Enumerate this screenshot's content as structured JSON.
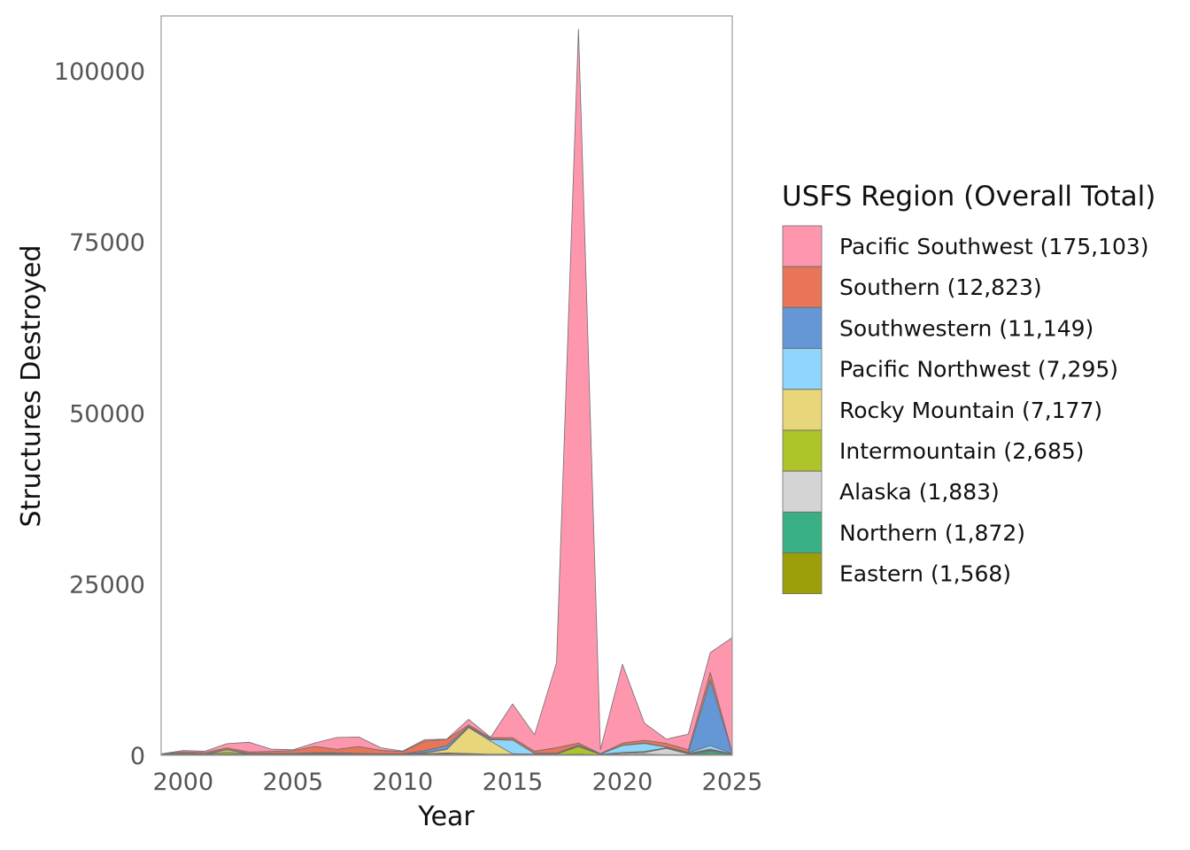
{
  "chart_data": {
    "type": "area",
    "stacked": true,
    "xlabel": "Year",
    "ylabel": "Structures Destroyed",
    "xlim": [
      1999,
      2025
    ],
    "ylim": [
      0,
      108000
    ],
    "x_ticks": [
      2000,
      2005,
      2010,
      2015,
      2020,
      2025
    ],
    "y_ticks": [
      0,
      25000,
      50000,
      75000,
      100000
    ],
    "legend_title": "USFS Region (Overall Total)",
    "legend_position": "right",
    "grid": false,
    "x": [
      1999,
      2000,
      2001,
      2002,
      2003,
      2004,
      2005,
      2006,
      2007,
      2008,
      2009,
      2010,
      2011,
      2012,
      2013,
      2014,
      2015,
      2016,
      2017,
      2018,
      2019,
      2020,
      2021,
      2022,
      2023,
      2024,
      2025
    ],
    "series": [
      {
        "name": "Eastern",
        "legend_label": "Eastern (1,568)",
        "color": "#9c9e0a",
        "values": [
          20,
          50,
          30,
          80,
          40,
          50,
          60,
          80,
          70,
          50,
          40,
          40,
          60,
          80,
          60,
          40,
          50,
          40,
          40,
          60,
          30,
          40,
          60,
          50,
          40,
          200,
          50
        ]
      },
      {
        "name": "Northern",
        "legend_label": "Northern (1,872)",
        "color": "#38b084",
        "values": [
          30,
          60,
          40,
          80,
          60,
          60,
          60,
          120,
          100,
          60,
          40,
          50,
          60,
          80,
          60,
          40,
          40,
          40,
          50,
          60,
          30,
          50,
          100,
          50,
          40,
          400,
          80
        ]
      },
      {
        "name": "Alaska",
        "legend_label": "Alaska (1,883)",
        "color": "#d4d4d4",
        "values": [
          10,
          20,
          20,
          40,
          20,
          20,
          20,
          30,
          30,
          20,
          20,
          20,
          30,
          40,
          30,
          20,
          30,
          30,
          30,
          40,
          20,
          150,
          250,
          900,
          100,
          100,
          20
        ]
      },
      {
        "name": "Intermountain",
        "legend_label": "Intermountain (2,685)",
        "color": "#afc428",
        "values": [
          20,
          60,
          40,
          300,
          60,
          60,
          60,
          60,
          60,
          60,
          40,
          40,
          80,
          150,
          100,
          60,
          60,
          40,
          60,
          1100,
          40,
          150,
          100,
          80,
          60,
          100,
          40
        ]
      },
      {
        "name": "Rocky Mountain",
        "legend_label": "Rocky Mountain (7,177)",
        "color": "#e8d77a",
        "values": [
          10,
          30,
          20,
          300,
          40,
          20,
          20,
          20,
          30,
          30,
          20,
          20,
          100,
          500,
          3800,
          1900,
          40,
          20,
          30,
          30,
          20,
          30,
          30,
          20,
          30,
          100,
          30
        ]
      },
      {
        "name": "Pacific Northwest",
        "legend_label": "Pacific Northwest (7,295)",
        "color": "#8ed6fb",
        "values": [
          10,
          20,
          20,
          40,
          30,
          30,
          30,
          40,
          40,
          30,
          30,
          30,
          40,
          60,
          100,
          200,
          2000,
          80,
          60,
          150,
          40,
          1000,
          1200,
          100,
          100,
          500,
          60
        ]
      },
      {
        "name": "Southwestern",
        "legend_label": "Southwestern (11,149)",
        "color": "#6597d6",
        "values": [
          10,
          80,
          40,
          40,
          30,
          30,
          30,
          40,
          40,
          30,
          30,
          30,
          300,
          500,
          100,
          100,
          50,
          40,
          40,
          40,
          30,
          50,
          60,
          30,
          40,
          9600,
          40
        ]
      },
      {
        "name": "Southern",
        "legend_label": "Southern (12,823)",
        "color": "#e87557",
        "values": [
          60,
          200,
          200,
          200,
          200,
          300,
          400,
          900,
          500,
          1000,
          500,
          300,
          1400,
          900,
          200,
          200,
          300,
          300,
          800,
          300,
          30,
          300,
          400,
          500,
          400,
          1100,
          100
        ]
      },
      {
        "name": "Pacific Southwest",
        "legend_label": "Pacific Southwest (175,103)",
        "color": "#fe96ae",
        "values": [
          30,
          180,
          190,
          620,
          1420,
          330,
          120,
          510,
          1730,
          1390,
          380,
          80,
          230,
          40,
          800,
          60,
          4930,
          2410,
          12390,
          104300,
          610,
          11530,
          2500,
          620,
          2280,
          2900,
          16780
        ]
      }
    ]
  }
}
